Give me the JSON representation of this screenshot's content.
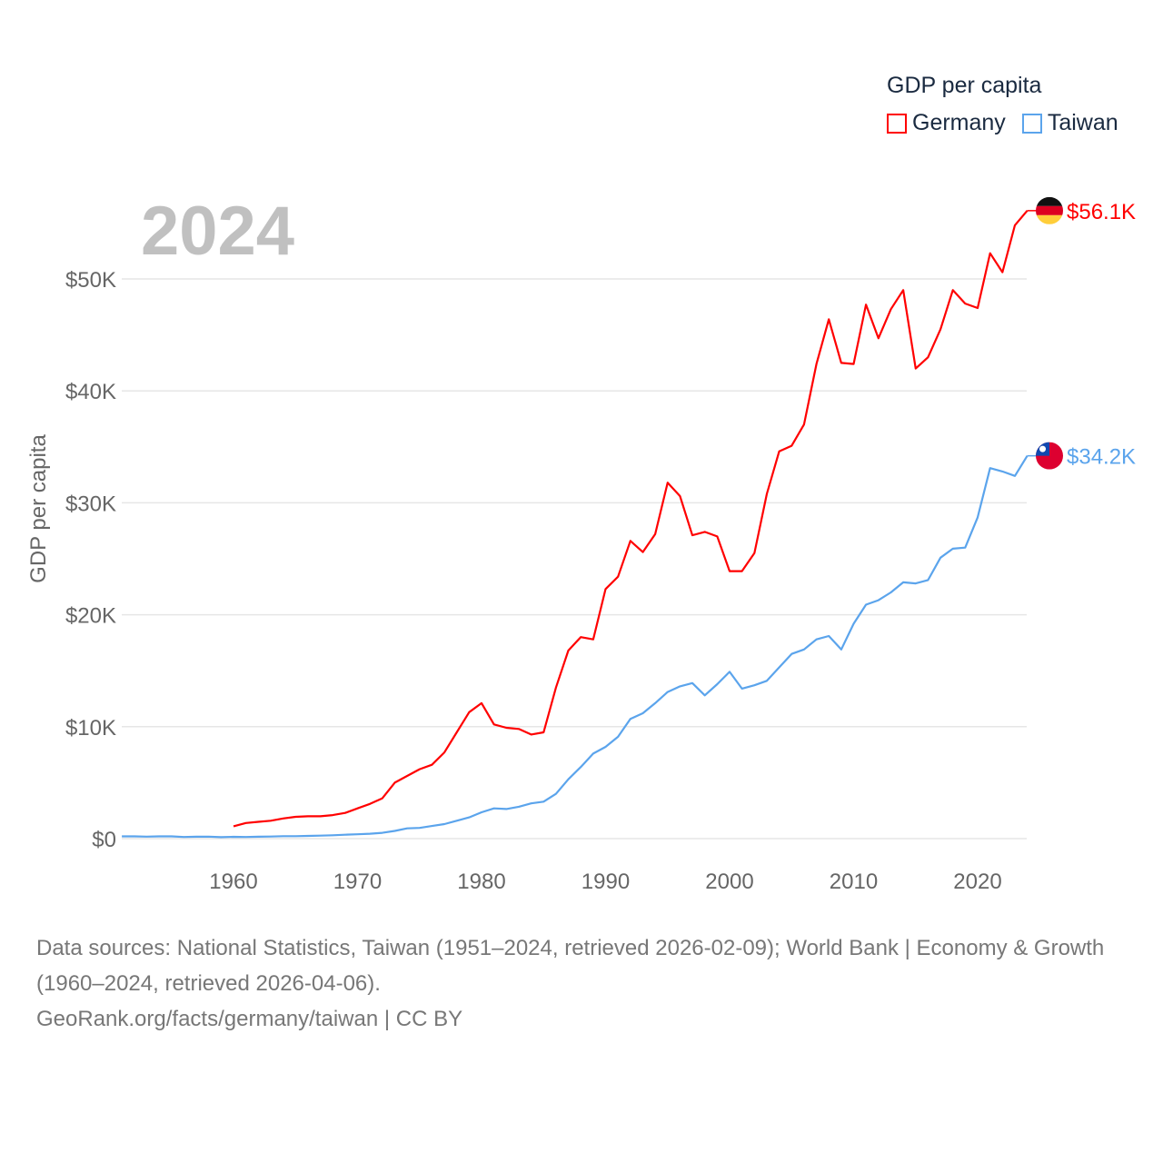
{
  "legend": {
    "title": "GDP per capita",
    "items": [
      {
        "name": "Germany",
        "color": "#ff0000"
      },
      {
        "name": "Taiwan",
        "color": "#5ba4ec"
      }
    ]
  },
  "year_label": "2024",
  "footer": {
    "sources": "Data sources: National Statistics, Taiwan (1951–2024, retrieved 2026-02-09); World Bank | Economy & Growth (1960–2024, retrieved 2026-04-06).",
    "credit": "GeoRank.org/facts/germany/taiwan | CC BY"
  },
  "chart_data": {
    "type": "line",
    "title": "",
    "xlabel": "",
    "ylabel": "GDP per capita",
    "xlim": [
      1951,
      2024
    ],
    "ylim": [
      0,
      56.1
    ],
    "x_ticks": [
      1960,
      1970,
      1980,
      1990,
      2000,
      2010,
      2020
    ],
    "y_ticks": [
      0,
      10,
      20,
      30,
      40,
      50
    ],
    "y_tick_labels": [
      "$0",
      "$10K",
      "$20K",
      "$30K",
      "$40K",
      "$50K"
    ],
    "y_unit": "thousand USD",
    "grid": "horizontal",
    "legend_position": "top-right",
    "series": [
      {
        "name": "Germany",
        "color": "#ff0000",
        "start_year": 1960,
        "end_label": "$56.1K",
        "values": [
          1.1,
          1.4,
          1.5,
          1.6,
          1.8,
          1.95,
          2.0,
          2.0,
          2.1,
          2.3,
          2.7,
          3.1,
          3.6,
          5.0,
          5.6,
          6.2,
          6.6,
          7.7,
          9.5,
          11.3,
          12.1,
          10.2,
          9.9,
          9.8,
          9.3,
          9.5,
          13.5,
          16.8,
          18.0,
          17.8,
          22.3,
          23.4,
          26.6,
          25.6,
          27.2,
          31.8,
          30.6,
          27.1,
          27.4,
          27.0,
          23.9,
          23.9,
          25.5,
          30.8,
          34.6,
          35.1,
          37.0,
          42.4,
          46.4,
          42.5,
          42.4,
          47.7,
          44.7,
          47.3,
          49.0,
          42.0,
          43.0,
          45.5,
          49.0,
          47.8,
          47.4,
          52.3,
          50.6,
          54.8,
          56.1
        ]
      },
      {
        "name": "Taiwan",
        "color": "#5ba4ec",
        "start_year": 1951,
        "end_label": "$34.2K",
        "values": [
          0.2,
          0.2,
          0.18,
          0.2,
          0.2,
          0.15,
          0.17,
          0.18,
          0.13,
          0.16,
          0.15,
          0.17,
          0.19,
          0.22,
          0.22,
          0.24,
          0.27,
          0.3,
          0.35,
          0.39,
          0.44,
          0.52,
          0.69,
          0.92,
          0.96,
          1.13,
          1.3,
          1.6,
          1.9,
          2.35,
          2.7,
          2.65,
          2.85,
          3.15,
          3.3,
          4.0,
          5.3,
          6.4,
          7.6,
          8.2,
          9.1,
          10.7,
          11.2,
          12.1,
          13.1,
          13.6,
          13.9,
          12.8,
          13.8,
          14.9,
          13.4,
          13.7,
          14.1,
          15.3,
          16.5,
          16.9,
          17.8,
          18.1,
          16.9,
          19.2,
          20.9,
          21.3,
          22.0,
          22.9,
          22.8,
          23.1,
          25.1,
          25.9,
          26.0,
          28.7,
          33.1,
          32.8,
          32.4,
          34.2
        ]
      }
    ]
  }
}
